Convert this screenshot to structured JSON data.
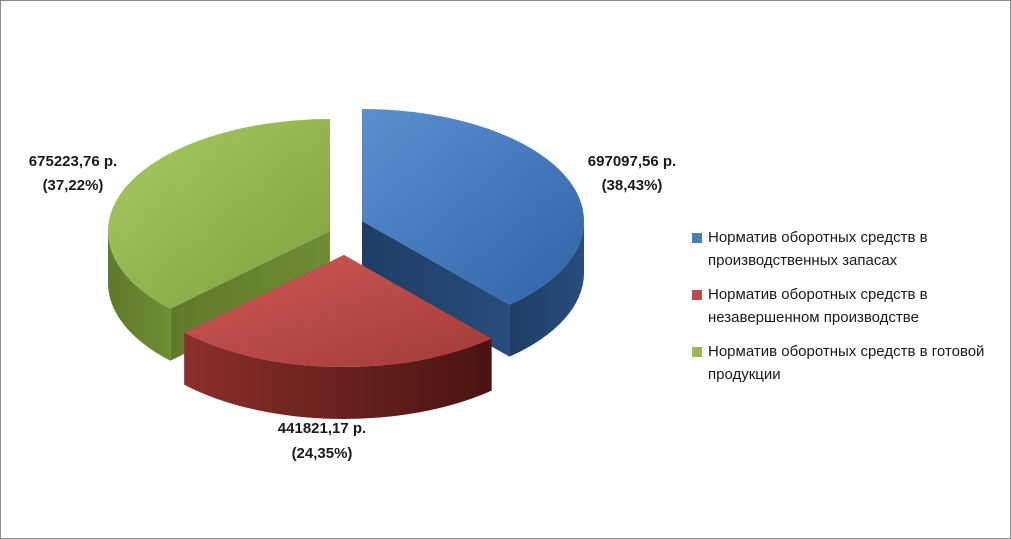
{
  "chart_data": {
    "type": "pie",
    "title": "",
    "three_d": true,
    "legend_position": "right",
    "slices": [
      {
        "label": "Норматив оборотных средств в производственных запасах",
        "value": 697097.56,
        "percent": 38.43,
        "value_text": "697097,56 р.",
        "percent_text": "(38,43%)",
        "color": "#4a7ebb"
      },
      {
        "label": "Норматив оборотных средств в незавершенном производстве",
        "value": 441821.17,
        "percent": 24.35,
        "value_text": "441821,17 р.",
        "percent_text": "(24,35%)",
        "color": "#be4b48"
      },
      {
        "label": "Норматив оборотных средств в готовой продукции",
        "value": 675223.76,
        "percent": 37.22,
        "value_text": "675223,76 р.",
        "percent_text": "(37,22%)",
        "color": "#98b954"
      }
    ]
  }
}
